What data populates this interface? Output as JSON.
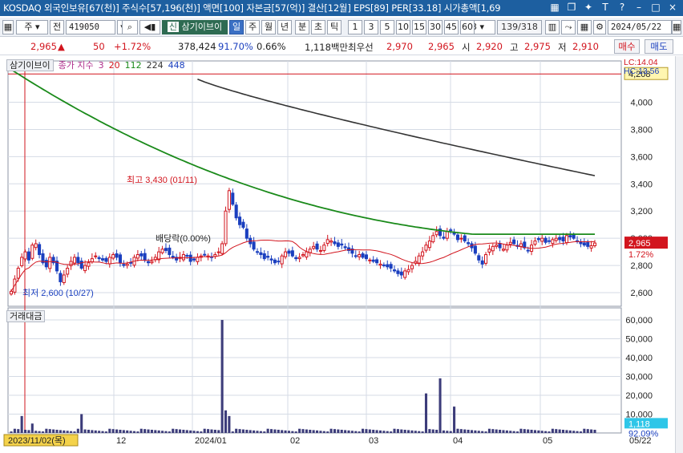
{
  "titlebar": {
    "title": "KOSDAQ 외국인보유[67(천)] 주식수[57,196(천)] 액면[100] 자본금[57(억)] 결산[12월] EPS[89] PER[33.18] 시가총액[1,69",
    "icons": [
      "grid-icon",
      "restore-icon",
      "pin-icon",
      "T-icon",
      "help-icon",
      "minimize-icon",
      "maximize-icon",
      "close-icon"
    ]
  },
  "toolbar": {
    "type_label": "주",
    "prev_label": "전",
    "code_value": "419050",
    "stock_name": "삼기이브이",
    "period_buttons": [
      "일",
      "주",
      "월",
      "년",
      "분",
      "초",
      "틱"
    ],
    "selected_period": "일",
    "interval_buttons": [
      "1",
      "3",
      "5",
      "10",
      "15",
      "30",
      "45",
      "60"
    ],
    "interval_select": "3",
    "page_counter": "139/318",
    "date_value": "2024/05/22"
  },
  "quote": {
    "price": "2,965",
    "change_arrow": "▲",
    "change": "50",
    "change_pct": "+1.72%",
    "volume": "378,424",
    "vol_ratio": "91.70%",
    "turnover": "0.66%",
    "amount": "1,118백만",
    "best_label": "최우선",
    "best_ask": "2,970",
    "best_bid": "2,965",
    "open_label": "시",
    "open": "2,920",
    "high_label": "고",
    "high": "2,975",
    "low_label": "저",
    "low": "2,910",
    "buy_label": "매수",
    "sell_label": "매도"
  },
  "legend": {
    "price_tag": "삼기이브이",
    "ma_label": "종가 지수",
    "ma_periods": [
      "3",
      "20",
      "112",
      "224",
      "448"
    ],
    "volume_tag": "거래대금"
  },
  "chart_data": {
    "type": "candlestick",
    "price_axis": {
      "ticks": [
        4000,
        3800,
        3600,
        3400,
        3200,
        3000,
        2800,
        2600
      ],
      "ylim": [
        2500,
        4280
      ]
    },
    "volume_axis": {
      "ticks": [
        60000,
        50000,
        40000,
        30000,
        20000,
        10000
      ],
      "ylim": [
        0,
        63000
      ]
    },
    "x_labels": [
      "2023/11/02(목)",
      "12",
      "2024/01",
      "02",
      "03",
      "04",
      "05",
      "05/22"
    ],
    "lc_label": "LC:14.04",
    "hc_label": "HC:13.56",
    "upper_limit_label": "4,208",
    "current_price_label": "2,965",
    "current_pct_label": "1.72%",
    "current_amount_label": "1,118",
    "current_amount_pct": "92.09%",
    "annotations": {
      "high": "최고 3,430 (01/11)",
      "low": "최저 2,600 (10/27)",
      "dividend": "배당락(0.00%)"
    },
    "colors": {
      "up": "#d2151e",
      "down": "#1a3fbf",
      "ma20": "#d2151e",
      "ma112": "#1a8a1a",
      "ma224": "#333333",
      "volume": "#3c3c7a",
      "grid": "#d5dbe5"
    },
    "closes": [
      2610,
      2700,
      2780,
      2860,
      2900,
      2840,
      2950,
      2960,
      2880,
      2820,
      2790,
      2860,
      2820,
      2760,
      2680,
      2730,
      2780,
      2830,
      2860,
      2820,
      2780,
      2800,
      2820,
      2850,
      2870,
      2850,
      2840,
      2830,
      2860,
      2880,
      2860,
      2820,
      2800,
      2810,
      2820,
      2860,
      2880,
      2870,
      2840,
      2820,
      2830,
      2860,
      2900,
      2920,
      2910,
      2880,
      2860,
      2840,
      2860,
      2880,
      2870,
      2830,
      2840,
      2860,
      2870,
      2880,
      2870,
      2860,
      2880,
      2900,
      2960,
      3200,
      3350,
      3250,
      3150,
      3100,
      3080,
      3000,
      2960,
      2920,
      2900,
      2880,
      2850,
      2860,
      2840,
      2820,
      2830,
      2870,
      2900,
      2890,
      2870,
      2850,
      2860,
      2880,
      2900,
      2920,
      2940,
      2920,
      2910,
      2950,
      2990,
      2980,
      2960,
      2940,
      2950,
      2930,
      2910,
      2890,
      2870,
      2880,
      2860,
      2850,
      2840,
      2830,
      2820,
      2810,
      2800,
      2790,
      2780,
      2760,
      2740,
      2730,
      2760,
      2770,
      2800,
      2830,
      2870,
      2900,
      2950,
      2980,
      3020,
      3050,
      3020,
      3000,
      3050,
      3060,
      3030,
      2990,
      3000,
      2980,
      2960,
      2930,
      2890,
      2840,
      2810,
      2880,
      2920,
      2940,
      2950,
      2930,
      2920,
      2950,
      2970,
      2960,
      2940,
      2960,
      2930,
      2910,
      2950,
      2980,
      2990,
      3000,
      2970,
      2980,
      2990,
      3000,
      2990,
      2980,
      3020,
      3010,
      3000,
      2980,
      2960,
      2950,
      2940,
      2945,
      2965
    ]
  }
}
